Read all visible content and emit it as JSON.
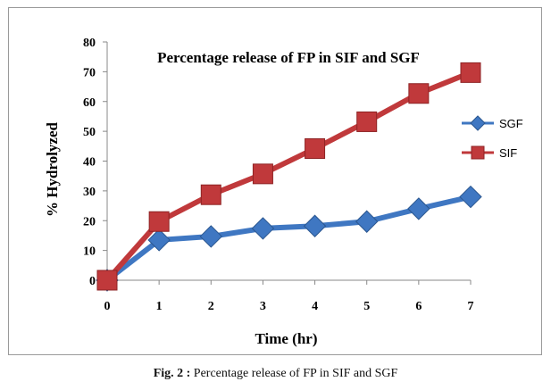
{
  "chart_data": {
    "type": "line",
    "title": "Percentage release of FP in SIF and SGF",
    "xlabel": "Time (hr)",
    "ylabel": "% Hydrolyzed",
    "x": [
      0,
      1,
      2,
      3,
      4,
      5,
      6,
      7
    ],
    "ylim": [
      0,
      80
    ],
    "yticks": [
      0,
      10,
      20,
      30,
      40,
      50,
      60,
      70,
      80
    ],
    "grid": false,
    "legend": "right",
    "series": [
      {
        "name": "SGF",
        "color": "#3f77c2",
        "marker": "diamond",
        "values": [
          0,
          13.5,
          14.7,
          17.4,
          18.2,
          19.7,
          24,
          28
        ]
      },
      {
        "name": "SIF",
        "color": "#c0393b",
        "marker": "square",
        "values": [
          0,
          19.7,
          28.7,
          35.7,
          44.2,
          53.2,
          62.7,
          69.7
        ]
      }
    ]
  },
  "caption": {
    "label": "Fig. 2 :",
    "text": " Percentage release of FP in SIF and SGF"
  }
}
